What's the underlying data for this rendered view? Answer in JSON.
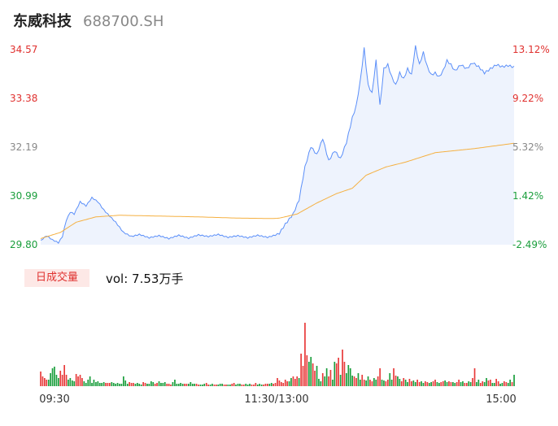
{
  "header": {
    "name": "东威科技",
    "code": "688700.SH"
  },
  "volume_panel": {
    "badge": "日成交量",
    "vol_label": "vol: 7.53万手"
  },
  "colors": {
    "price": "#5b8ff9",
    "avg": "#f5b041",
    "up": "#e83a3a",
    "down": "#1a9e3c",
    "fill": "#eef3fd"
  },
  "chart_data": [
    {
      "type": "line",
      "y_left_ticks": [
        "34.57",
        "33.38",
        "32.19",
        "30.99",
        "29.80"
      ],
      "y_right_ticks": [
        "13.12%",
        "9.22%",
        "5.32%",
        "1.42%",
        "-2.49%"
      ],
      "ylim": [
        29.8,
        34.57
      ],
      "x_ticks": [
        "09:30",
        "11:30/13:00",
        "15:00"
      ],
      "n_minutes": 241,
      "price_anchors": [
        [
          0,
          29.9
        ],
        [
          3,
          30.02
        ],
        [
          6,
          29.92
        ],
        [
          9,
          29.85
        ],
        [
          11,
          30.0
        ],
        [
          13,
          30.4
        ],
        [
          15,
          30.6
        ],
        [
          17,
          30.55
        ],
        [
          20,
          30.85
        ],
        [
          23,
          30.75
        ],
        [
          26,
          30.95
        ],
        [
          29,
          30.85
        ],
        [
          32,
          30.65
        ],
        [
          35,
          30.5
        ],
        [
          38,
          30.35
        ],
        [
          42,
          30.1
        ],
        [
          46,
          30.0
        ],
        [
          50,
          30.05
        ],
        [
          55,
          29.97
        ],
        [
          60,
          30.02
        ],
        [
          65,
          29.95
        ],
        [
          70,
          30.03
        ],
        [
          75,
          29.96
        ],
        [
          80,
          30.04
        ],
        [
          85,
          30.0
        ],
        [
          90,
          30.05
        ],
        [
          95,
          29.98
        ],
        [
          100,
          30.02
        ],
        [
          105,
          29.97
        ],
        [
          110,
          30.03
        ],
        [
          115,
          29.98
        ],
        [
          120,
          30.05
        ],
        [
          121,
          30.08
        ],
        [
          124,
          30.3
        ],
        [
          128,
          30.55
        ],
        [
          131,
          30.9
        ],
        [
          134,
          31.7
        ],
        [
          137,
          32.2
        ],
        [
          140,
          32.0
        ],
        [
          143,
          32.4
        ],
        [
          146,
          31.85
        ],
        [
          149,
          32.1
        ],
        [
          152,
          31.9
        ],
        [
          155,
          32.3
        ],
        [
          158,
          32.9
        ],
        [
          160,
          33.2
        ],
        [
          162,
          33.8
        ],
        [
          164,
          34.6
        ],
        [
          166,
          33.7
        ],
        [
          168,
          33.5
        ],
        [
          170,
          34.3
        ],
        [
          172,
          33.2
        ],
        [
          174,
          34.1
        ],
        [
          176,
          34.2
        ],
        [
          178,
          33.9
        ],
        [
          180,
          33.7
        ],
        [
          182,
          34.0
        ],
        [
          184,
          33.85
        ],
        [
          186,
          34.1
        ],
        [
          188,
          33.95
        ],
        [
          190,
          34.65
        ],
        [
          192,
          34.2
        ],
        [
          194,
          34.5
        ],
        [
          196,
          34.15
        ],
        [
          198,
          33.95
        ],
        [
          200,
          34.0
        ],
        [
          202,
          33.9
        ],
        [
          204,
          34.05
        ],
        [
          206,
          34.3
        ],
        [
          208,
          34.2
        ],
        [
          210,
          34.05
        ],
        [
          213,
          34.2
        ],
        [
          216,
          34.1
        ],
        [
          219,
          34.25
        ],
        [
          222,
          34.15
        ],
        [
          225,
          34.0
        ],
        [
          228,
          34.1
        ],
        [
          231,
          34.2
        ],
        [
          234,
          34.15
        ],
        [
          237,
          34.18
        ],
        [
          240,
          34.14
        ]
      ],
      "avg_anchors": [
        [
          0,
          29.95
        ],
        [
          10,
          30.1
        ],
        [
          18,
          30.35
        ],
        [
          28,
          30.48
        ],
        [
          40,
          30.52
        ],
        [
          60,
          30.5
        ],
        [
          80,
          30.48
        ],
        [
          100,
          30.45
        ],
        [
          118,
          30.44
        ],
        [
          121,
          30.45
        ],
        [
          130,
          30.55
        ],
        [
          140,
          30.82
        ],
        [
          150,
          31.05
        ],
        [
          158,
          31.18
        ],
        [
          165,
          31.5
        ],
        [
          175,
          31.7
        ],
        [
          185,
          31.82
        ],
        [
          200,
          32.05
        ],
        [
          220,
          32.15
        ],
        [
          240,
          32.28
        ]
      ]
    },
    {
      "type": "bar",
      "ylim": [
        0,
        100
      ],
      "volumes": [
        18,
        12,
        10,
        8,
        8,
        16,
        22,
        24,
        14,
        10,
        19,
        14,
        26,
        14,
        8,
        10,
        7,
        6,
        15,
        12,
        14,
        10,
        6,
        4,
        8,
        12,
        4,
        8,
        5,
        6,
        4,
        4,
        5,
        4,
        4,
        4,
        5,
        4,
        3,
        4,
        3,
        3,
        12,
        7,
        3,
        5,
        4,
        4,
        3,
        4,
        3,
        2,
        5,
        4,
        3,
        3,
        6,
        5,
        3,
        4,
        6,
        4,
        4,
        5,
        3,
        3,
        2,
        5,
        8,
        3,
        3,
        4,
        3,
        3,
        3,
        3,
        5,
        3,
        3,
        3,
        2,
        2,
        2,
        3,
        4,
        2,
        2,
        3,
        2,
        2,
        2,
        3,
        3,
        2,
        2,
        2,
        2,
        3,
        4,
        2,
        3,
        3,
        2,
        2,
        3,
        2,
        3,
        2,
        2,
        4,
        2,
        3,
        2,
        2,
        3,
        3,
        3,
        4,
        3,
        4,
        10,
        7,
        5,
        4,
        8,
        6,
        6,
        10,
        12,
        9,
        12,
        10,
        40,
        25,
        78,
        38,
        30,
        36,
        28,
        19,
        25,
        9,
        6,
        16,
        12,
        22,
        12,
        20,
        8,
        30,
        28,
        35,
        14,
        45,
        30,
        16,
        26,
        22,
        13,
        12,
        10,
        16,
        8,
        14,
        8,
        7,
        12,
        8,
        6,
        10,
        8,
        12,
        22,
        8,
        7,
        6,
        8,
        16,
        8,
        22,
        13,
        12,
        9,
        6,
        10,
        8,
        5,
        9,
        6,
        7,
        5,
        8,
        5,
        6,
        4,
        6,
        5,
        4,
        5,
        6,
        8,
        5,
        4,
        5,
        6,
        7,
        5,
        6,
        5,
        5,
        4,
        5,
        8,
        5,
        6,
        4,
        4,
        6,
        5,
        10,
        22,
        5,
        8,
        4,
        6,
        5,
        10,
        7,
        8,
        4,
        4,
        9,
        6,
        3,
        4,
        6,
        5,
        4,
        8,
        5,
        14
      ],
      "directions": [
        1,
        1,
        1,
        1,
        0,
        0,
        0,
        0,
        0,
        0,
        1,
        1,
        1,
        1,
        0,
        0,
        0,
        0,
        1,
        1,
        1,
        1,
        0,
        0,
        0,
        0,
        0,
        0,
        0,
        0,
        0,
        0,
        0,
        1,
        1,
        1,
        0,
        0,
        0,
        0,
        0,
        0,
        0,
        0,
        0,
        1,
        1,
        1,
        0,
        0,
        0,
        0,
        1,
        1,
        0,
        0,
        0,
        0,
        1,
        1,
        0,
        0,
        0,
        0,
        1,
        1,
        1,
        0,
        0,
        0,
        0,
        0,
        0,
        1,
        1,
        0,
        0,
        0,
        0,
        1,
        1,
        0,
        0,
        0,
        1,
        1,
        0,
        0,
        1,
        1,
        0,
        0,
        0,
        1,
        1,
        0,
        0,
        1,
        1,
        0,
        0,
        0,
        1,
        1,
        0,
        0,
        0,
        1,
        1,
        1,
        0,
        0,
        0,
        1,
        1,
        1,
        0,
        0,
        1,
        1,
        1,
        1,
        1,
        1,
        1,
        1,
        0,
        0,
        1,
        1,
        1,
        0,
        1,
        1,
        1,
        1,
        0,
        0,
        1,
        1,
        0,
        0,
        0,
        1,
        0,
        0,
        1,
        1,
        0,
        0,
        1,
        1,
        0,
        1,
        1,
        0,
        0,
        0,
        0,
        1,
        1,
        0,
        0,
        1,
        1,
        0,
        0,
        1,
        1,
        0,
        0,
        1,
        1,
        0,
        0,
        1,
        1,
        0,
        0,
        1,
        1,
        0,
        0,
        1,
        1,
        0,
        0,
        1,
        1,
        0,
        0,
        1,
        1,
        0,
        0,
        1,
        1,
        0,
        0,
        1,
        1,
        0,
        0,
        1,
        1,
        0,
        0,
        1,
        1,
        0,
        0,
        1,
        1,
        0,
        0,
        1,
        1,
        0,
        0,
        1,
        1,
        0,
        0,
        1,
        1,
        0,
        0,
        1,
        1,
        0,
        0,
        1,
        1,
        0,
        0,
        1,
        1,
        0,
        0,
        1,
        0
      ]
    }
  ]
}
